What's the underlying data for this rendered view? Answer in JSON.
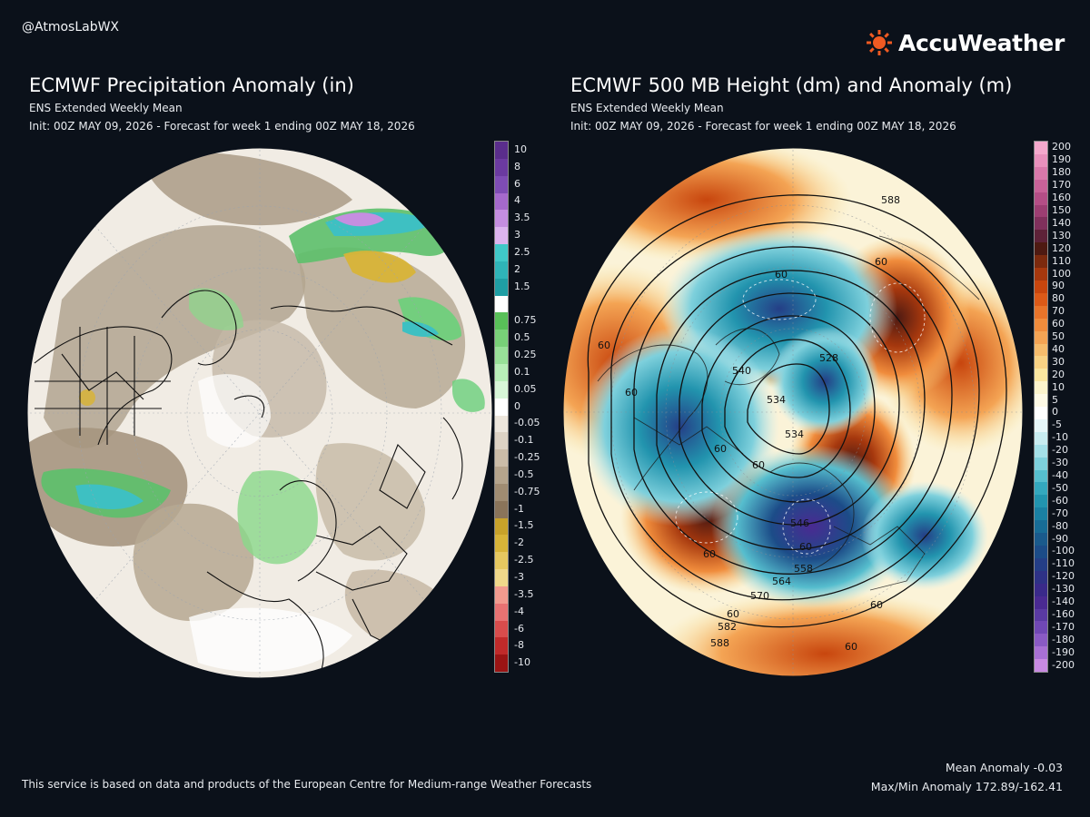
{
  "handle": "@AtmosLabWX",
  "brand": {
    "name": "AccuWeather",
    "icon": "sun-icon",
    "icon_color": "#f05a22"
  },
  "left_panel": {
    "title": "ECMWF Precipitation Anomaly (in)",
    "subtitle": "ENS Extended Weekly Mean",
    "init": "Init: 00Z MAY 09, 2026 - Forecast for week 1 ending 00Z MAY 18, 2026",
    "colorbar": {
      "labels": [
        "10",
        "8",
        "6",
        "4",
        "3.5",
        "3",
        "2.5",
        "2",
        "1.5",
        "",
        "0.75",
        "0.5",
        "0.25",
        "0.1",
        "0.05",
        "0",
        "-0.05",
        "-0.1",
        "-0.25",
        "-0.5",
        "-0.75",
        "-1",
        "-1.5",
        "-2",
        "-2.5",
        "-3",
        "-3.5",
        "-4",
        "-6",
        "-8",
        "-10"
      ],
      "colors": [
        "#5a2d8c",
        "#6b3aa0",
        "#7e4cb4",
        "#a569cc",
        "#c58ee0",
        "#dcb4ee",
        "#40c8c8",
        "#2fb4b8",
        "#1f9ea4",
        "#ffffff",
        "#58c058",
        "#78d078",
        "#98e098",
        "#b8eeb8",
        "#d8f6d8",
        "#ffffff",
        "#ede6dc",
        "#ddd2c4",
        "#cbbca8",
        "#b5a48c",
        "#a08c72",
        "#8a745a",
        "#c8a22a",
        "#d8b438",
        "#e6c860",
        "#f0d88a",
        "#f29a8e",
        "#e87272",
        "#d84c4c",
        "#c02a2a",
        "#9a1414"
      ]
    }
  },
  "right_panel": {
    "title": "ECMWF 500 MB Height (dm) and Anomaly (m)",
    "subtitle": "ENS Extended Weekly Mean",
    "init": "Init: 00Z MAY 09, 2026 - Forecast for week 1 ending 00Z MAY 18, 2026",
    "colorbar": {
      "labels": [
        "200",
        "190",
        "180",
        "170",
        "160",
        "150",
        "140",
        "130",
        "120",
        "110",
        "100",
        "90",
        "80",
        "70",
        "60",
        "50",
        "40",
        "30",
        "20",
        "10",
        "5",
        "0",
        "-5",
        "-10",
        "-20",
        "-30",
        "-40",
        "-50",
        "-60",
        "-70",
        "-80",
        "-90",
        "-100",
        "-110",
        "-120",
        "-130",
        "-140",
        "-160",
        "-170",
        "-180",
        "-190",
        "-200"
      ],
      "colors": [
        "#f4a8cc",
        "#e890bc",
        "#d878aa",
        "#c86298",
        "#b44e86",
        "#9c3e72",
        "#80305c",
        "#5e2238",
        "#4e1a12",
        "#7c2a0e",
        "#a6380e",
        "#c8460e",
        "#dc5a18",
        "#e8742a",
        "#f08c3c",
        "#f4a454",
        "#f6bc6c",
        "#f8d284",
        "#fae6a0",
        "#fcf4cc",
        "#fefae6",
        "#ffffff",
        "#e6f6f8",
        "#c8ecf0",
        "#a4e0e8",
        "#7ed0dc",
        "#56bece",
        "#34a8be",
        "#2294ae",
        "#1a80a2",
        "#186c96",
        "#1a5a8c",
        "#1c4c88",
        "#243e86",
        "#2e3286",
        "#3a2a8a",
        "#4a2a92",
        "#5a3aa2",
        "#7048b4",
        "#8a5ac4",
        "#a870d4",
        "#c88ae2"
      ]
    },
    "contour_labels": [
      "588",
      "60",
      "60",
      "60",
      "60",
      "540",
      "528",
      "534",
      "534",
      "60",
      "60",
      "546",
      "60",
      "558",
      "564",
      "570",
      "60",
      "582",
      "588",
      "60",
      "60",
      "60"
    ]
  },
  "footer": {
    "credit": "This service is based on data and products of the European Centre for Medium-range Weather Forecasts",
    "mean_anomaly": "Mean Anomaly -0.03",
    "max_min_anomaly": "Max/Min Anomaly 172.89/-162.41"
  }
}
